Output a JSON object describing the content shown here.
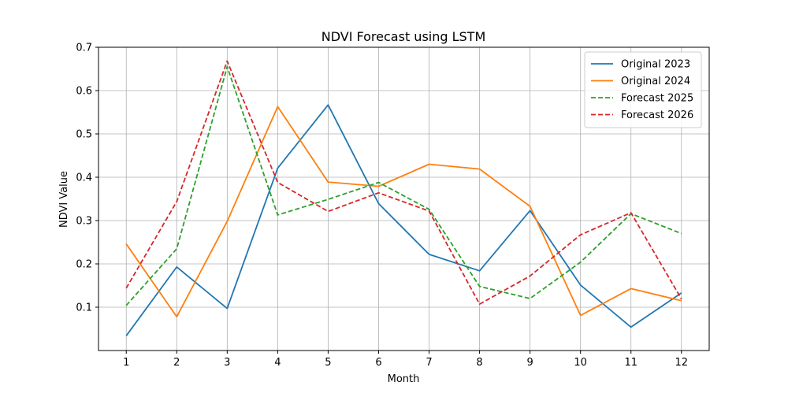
{
  "chart_data": {
    "type": "line",
    "title": "NDVI Forecast using LSTM",
    "xlabel": "Month",
    "ylabel": "NDVI Value",
    "x": [
      1,
      2,
      3,
      4,
      5,
      6,
      7,
      8,
      9,
      10,
      11,
      12
    ],
    "x_tick_labels": [
      "1",
      "2",
      "3",
      "4",
      "5",
      "6",
      "7",
      "8",
      "9",
      "10",
      "11",
      "12"
    ],
    "y_ticks": [
      0.1,
      0.2,
      0.3,
      0.4,
      0.5,
      0.6,
      0.7
    ],
    "y_tick_labels": [
      "0.1",
      "0.2",
      "0.3",
      "0.4",
      "0.5",
      "0.6",
      "0.7"
    ],
    "xlim": [
      0.45,
      12.55
    ],
    "ylim": [
      0.0,
      0.7
    ],
    "grid": true,
    "legend_position": "top-right",
    "series": [
      {
        "name": "Original 2023",
        "color": "#1f77b4",
        "style": "solid",
        "values": [
          0.034,
          0.193,
          0.097,
          0.421,
          0.567,
          0.339,
          0.222,
          0.184,
          0.323,
          0.151,
          0.054,
          0.133
        ]
      },
      {
        "name": "Original 2024",
        "color": "#ff7f0e",
        "style": "solid",
        "values": [
          0.246,
          0.078,
          0.298,
          0.563,
          0.389,
          0.379,
          0.43,
          0.419,
          0.333,
          0.081,
          0.143,
          0.115
        ]
      },
      {
        "name": "Forecast 2025",
        "color": "#2ca02c",
        "style": "dashed",
        "values": [
          0.104,
          0.235,
          0.655,
          0.313,
          0.349,
          0.388,
          0.326,
          0.148,
          0.12,
          0.204,
          0.316,
          0.27
        ]
      },
      {
        "name": "Forecast 2026",
        "color": "#d62728",
        "style": "dashed",
        "values": [
          0.144,
          0.344,
          0.668,
          0.388,
          0.321,
          0.364,
          0.322,
          0.107,
          0.172,
          0.267,
          0.318,
          0.119
        ]
      }
    ]
  }
}
